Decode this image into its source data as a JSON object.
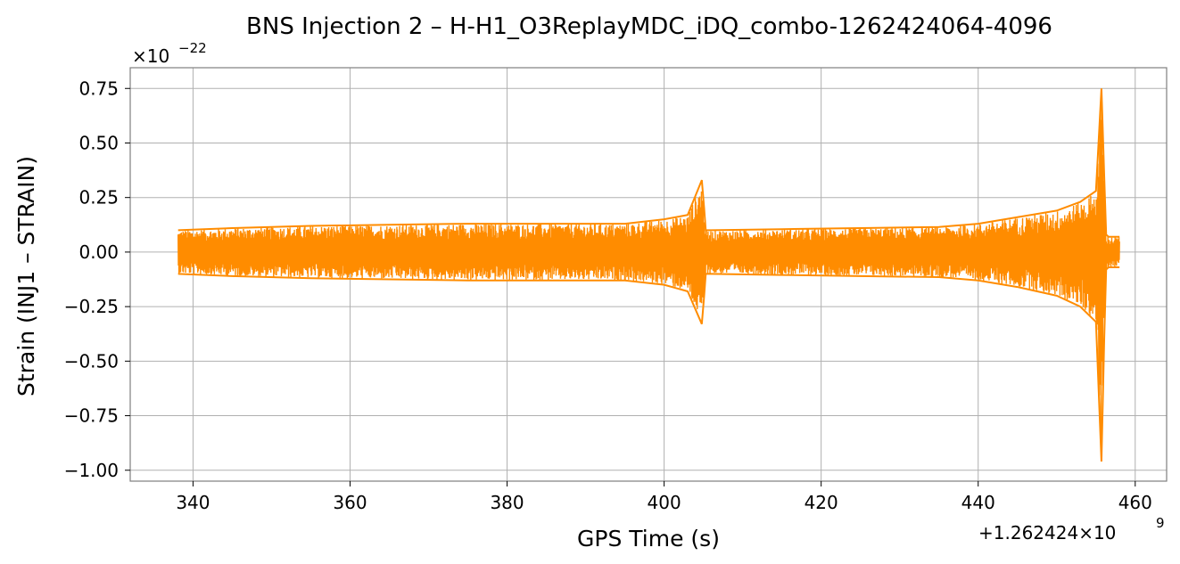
{
  "chart_data": {
    "type": "line",
    "title": "BNS Injection 2 – H-H1_O3ReplayMDC_iDQ_combo-1262424064-4096",
    "xlabel": "GPS Time (s)",
    "ylabel": "Strain (INJ1 – STRAIN)",
    "x_offset_label": "+1.262424×10",
    "x_offset_exp": "9",
    "y_scale_label": "×10",
    "y_scale_exp": "−22",
    "xlim": [
      332,
      464
    ],
    "ylim": [
      -1.05,
      0.845
    ],
    "grid": true,
    "x_ticks": [
      340,
      360,
      380,
      400,
      420,
      440,
      460
    ],
    "x_tick_labels": [
      "340",
      "360",
      "380",
      "400",
      "420",
      "440",
      "460"
    ],
    "y_ticks": [
      0.75,
      0.5,
      0.25,
      0.0,
      -0.25,
      -0.5,
      -0.75,
      -1.0
    ],
    "y_tick_labels": [
      "0.75",
      "0.50",
      "0.25",
      "0.00",
      "−0.25",
      "−0.50",
      "−0.75",
      "−1.00"
    ],
    "series": [
      {
        "color": "#ff8c00",
        "x_range": [
          338.1,
          458.0
        ],
        "envelope": {
          "x": [
            338.1,
            345,
            355,
            365,
            375,
            385,
            395,
            400,
            403,
            404.8,
            405.1,
            405.3,
            406,
            415,
            425,
            435,
            440,
            445,
            450,
            453,
            455,
            455.7,
            456.05,
            456.3,
            456.6,
            458.0
          ],
          "upper": [
            0.1,
            0.11,
            0.12,
            0.125,
            0.13,
            0.13,
            0.13,
            0.15,
            0.17,
            0.33,
            0.2,
            0.1,
            0.1,
            0.105,
            0.11,
            0.115,
            0.13,
            0.16,
            0.19,
            0.23,
            0.28,
            0.75,
            0.35,
            0.08,
            0.07,
            0.07
          ],
          "lower": [
            -0.1,
            -0.11,
            -0.12,
            -0.125,
            -0.13,
            -0.13,
            -0.13,
            -0.15,
            -0.18,
            -0.33,
            -0.2,
            -0.1,
            -0.1,
            -0.105,
            -0.11,
            -0.115,
            -0.13,
            -0.16,
            -0.2,
            -0.25,
            -0.32,
            -0.96,
            -0.4,
            -0.08,
            -0.07,
            -0.07
          ]
        }
      }
    ]
  }
}
